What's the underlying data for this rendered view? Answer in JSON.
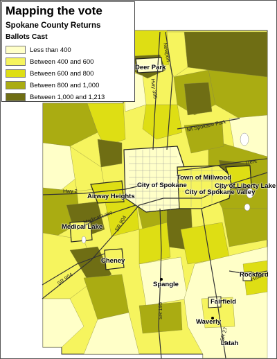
{
  "legend": {
    "title": "Mapping the vote",
    "subtitle": "Spokane County Returns",
    "caption": "Ballots Cast",
    "entries": [
      {
        "label": "Less than 400",
        "color": "#FFFFC8"
      },
      {
        "label": "Between 400 and 600",
        "color": "#F6F45E"
      },
      {
        "label": "Between 600 and 800",
        "color": "#DEDE14"
      },
      {
        "label": "Between 800 and 1,000",
        "color": "#AAAC12"
      },
      {
        "label": "Between 1,000 and 1,213",
        "color": "#6F6E14"
      }
    ]
  },
  "places": {
    "deer_park": "Deer Park",
    "millwood": "Town of Millwood",
    "spokane": "City of Spokane",
    "spokane_valley": "City of Spokane Valley",
    "liberty_lake": "City of Liberty Lake",
    "airway_heights": "Airway Heights",
    "medical_lake": "Medical Lake",
    "cheney": "Cheney",
    "spangle": "Spangle",
    "rockford": "Rockford",
    "fairfield": "Fairfield",
    "waverly": "Waverly",
    "latah": "Latah"
  },
  "roads": {
    "newport": "Newport",
    "hwy395": "Hwy 395",
    "mt_spokane_park": "Mt Spokane Park",
    "trent": "Trent",
    "hwy2": "Hwy 2",
    "medical_lake_rd": "Medical Lake",
    "sr904_a": "SR 904",
    "sr904_b": "SR 904",
    "sr195": "SR 195",
    "sr27": "SR 27",
    "hoxie": "Hoxie"
  }
}
